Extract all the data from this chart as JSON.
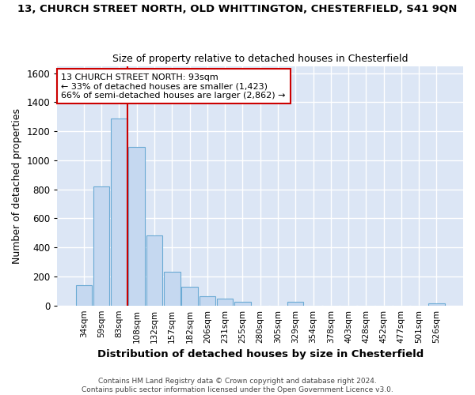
{
  "title_line1": "13, CHURCH STREET NORTH, OLD WHITTINGTON, CHESTERFIELD, S41 9QN",
  "title_line2": "Size of property relative to detached houses in Chesterfield",
  "xlabel": "Distribution of detached houses by size in Chesterfield",
  "ylabel": "Number of detached properties",
  "footnote": "Contains HM Land Registry data © Crown copyright and database right 2024.\nContains public sector information licensed under the Open Government Licence v3.0.",
  "bar_labels": [
    "34sqm",
    "59sqm",
    "83sqm",
    "108sqm",
    "132sqm",
    "157sqm",
    "182sqm",
    "206sqm",
    "231sqm",
    "255sqm",
    "280sqm",
    "305sqm",
    "329sqm",
    "354sqm",
    "378sqm",
    "403sqm",
    "428sqm",
    "452sqm",
    "477sqm",
    "501sqm",
    "526sqm"
  ],
  "bar_values": [
    140,
    820,
    1290,
    1095,
    485,
    230,
    130,
    65,
    45,
    25,
    0,
    0,
    25,
    0,
    0,
    0,
    0,
    0,
    0,
    0,
    15
  ],
  "bar_color": "#c5d8f0",
  "bar_edgecolor": "#6aaad4",
  "vline_x": 2,
  "vline_color": "#cc0000",
  "ylim": [
    0,
    1650
  ],
  "yticks": [
    0,
    200,
    400,
    600,
    800,
    1000,
    1200,
    1400,
    1600
  ],
  "annotation_text": "13 CHURCH STREET NORTH: 93sqm\n← 33% of detached houses are smaller (1,423)\n66% of semi-detached houses are larger (2,862) →",
  "annotation_box_color": "#cc0000",
  "background_color": "#dce6f5",
  "grid_color": "#ffffff",
  "fig_bg": "#ffffff",
  "figsize": [
    6.0,
    5.0
  ],
  "dpi": 100
}
